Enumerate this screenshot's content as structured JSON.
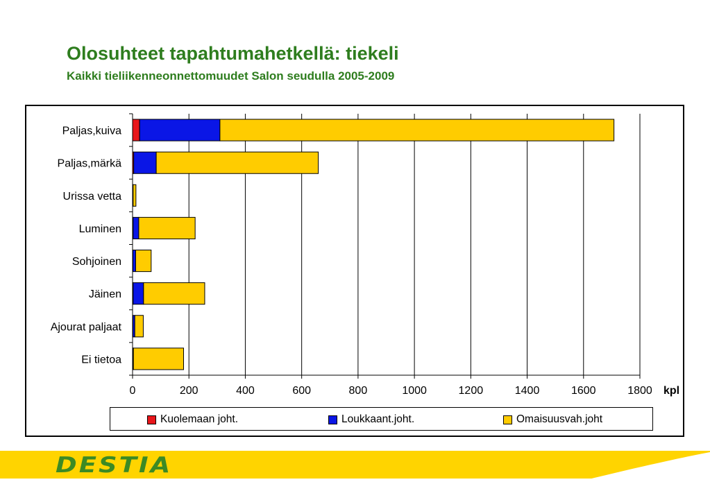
{
  "header": {
    "title": "Olosuhteet tapahtumahetkellä: tiekeli",
    "subtitle": "Kaikki tieliikenneonnettomuudet Salon seudulla 2005-2009"
  },
  "chart_data": {
    "type": "bar",
    "orientation": "horizontal",
    "stacked": true,
    "categories": [
      "Paljas,kuiva",
      "Paljas,märkä",
      "Urissa vetta",
      "Luminen",
      "Sohjoinen",
      "Jäinen",
      "Ajourat paljaat",
      "Ei tietoa"
    ],
    "series": [
      {
        "name": "Kuolemaan joht.",
        "color": "#e8161b",
        "values": [
          25,
          4,
          0,
          2,
          1,
          2,
          1,
          1
        ]
      },
      {
        "name": "Loukkaant.joht.",
        "color": "#0a16e6",
        "values": [
          285,
          80,
          2,
          20,
          10,
          37,
          7,
          2
        ]
      },
      {
        "name": "Omaisuusvah.joht",
        "color": "#ffcc00",
        "values": [
          1398,
          575,
          10,
          200,
          55,
          217,
          30,
          178
        ]
      }
    ],
    "xlabel": "kpl",
    "xlim": [
      0,
      1800
    ],
    "xticks": [
      "0",
      "200",
      "400",
      "600",
      "800",
      "1000",
      "1200",
      "1400",
      "1600",
      "1800"
    ],
    "grid": true,
    "legend_position": "bottom"
  },
  "footer": {
    "logo_text": "DESTIA"
  }
}
